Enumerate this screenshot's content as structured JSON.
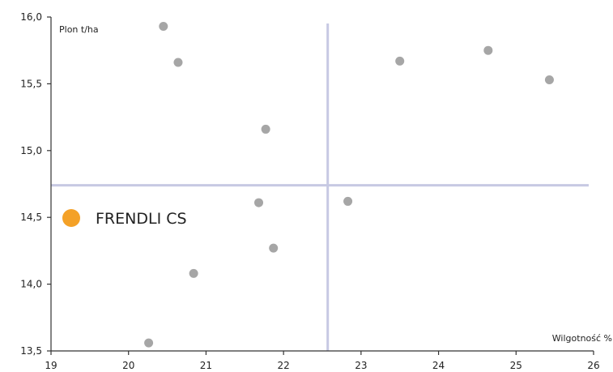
{
  "chart_data": {
    "type": "scatter",
    "title": "",
    "xlabel": "Wilgotność %",
    "ylabel": "Plon t/ha",
    "xlim": [
      19,
      26
    ],
    "ylim": [
      13.5,
      16.0
    ],
    "x_ticks": [
      "19",
      "20",
      "21",
      "22",
      "23",
      "24",
      "25",
      "26"
    ],
    "y_ticks": [
      "13,5",
      "14,0",
      "14,5",
      "15,0",
      "15,5",
      "16,0"
    ],
    "reference_lines": {
      "x": 22.57,
      "y": 14.74
    },
    "colors": {
      "points": "#a6a6a6",
      "highlight": "#f4a127",
      "reference": "#c7c9e3",
      "axis": "#333333"
    },
    "points": [
      {
        "x": 20.45,
        "y": 15.93
      },
      {
        "x": 20.64,
        "y": 15.66
      },
      {
        "x": 21.77,
        "y": 15.16
      },
      {
        "x": 21.68,
        "y": 14.61
      },
      {
        "x": 21.87,
        "y": 14.27
      },
      {
        "x": 20.84,
        "y": 14.08
      },
      {
        "x": 20.26,
        "y": 13.56
      },
      {
        "x": 23.5,
        "y": 15.67
      },
      {
        "x": 24.64,
        "y": 15.75
      },
      {
        "x": 25.43,
        "y": 15.53
      },
      {
        "x": 22.83,
        "y": 14.62
      }
    ],
    "legend": {
      "label": "FRENDLI CS",
      "placement": "left-middle"
    }
  }
}
